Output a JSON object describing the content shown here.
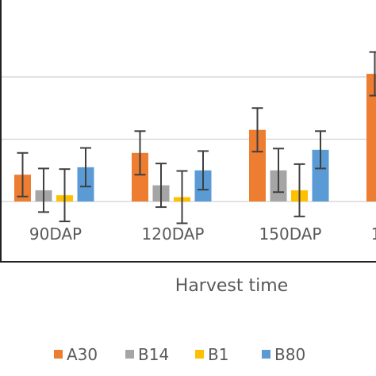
{
  "chart_data": {
    "type": "bar",
    "title": "",
    "xlabel": "Harvest time",
    "ylabel": "",
    "categories": [
      "90DAP",
      "120DAP",
      "150DAP",
      "1"
    ],
    "ylim": [
      0,
      2.3
    ],
    "grid": true,
    "legend_position": "bottom",
    "series": [
      {
        "name": "A30",
        "color": "#ED7D31",
        "values": [
          0.43,
          0.78,
          1.15,
          2.05
        ],
        "errors": [
          0.35,
          0.35,
          0.35,
          0.35
        ]
      },
      {
        "name": "B14",
        "color": "#A5A5A5",
        "values": [
          0.18,
          0.26,
          0.5,
          null
        ],
        "errors": [
          0.35,
          0.35,
          0.35,
          null
        ]
      },
      {
        "name": "B1",
        "color": "#FFC000",
        "values": [
          0.1,
          0.07,
          0.18,
          null
        ],
        "errors": [
          0.42,
          0.42,
          0.42,
          null
        ]
      },
      {
        "name": "B80",
        "color": "#5B9BD5",
        "values": [
          0.55,
          0.5,
          0.83,
          null
        ],
        "errors": [
          0.31,
          0.31,
          0.3,
          null
        ]
      }
    ]
  }
}
